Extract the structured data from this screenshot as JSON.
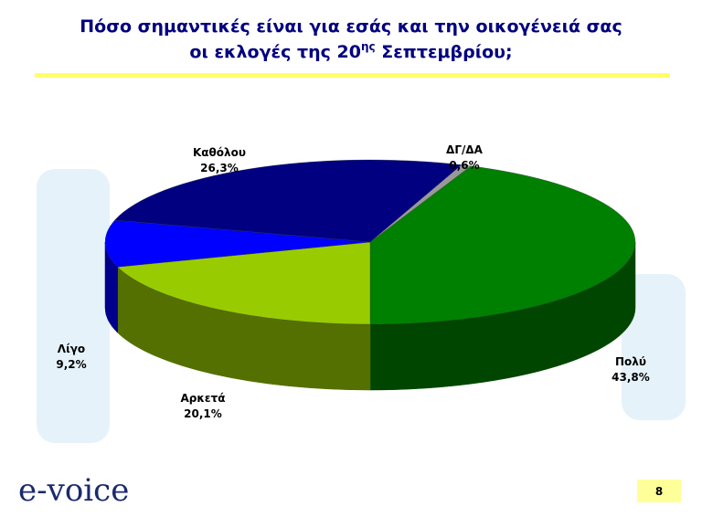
{
  "chart_data": {
    "type": "pie3d",
    "title": {
      "line1": "Πόσο σημαντικές είναι για εσάς και την οικογένειά σας",
      "line2_before": "οι εκλογές της 20",
      "superscript": "ης",
      "line2_after": " Σεπτεμβρίου;"
    },
    "categories": [
      "Πολύ",
      "Αρκετά",
      "Λίγο",
      "Καθόλου",
      "ΔΓ/ΔΑ"
    ],
    "values": [
      43.8,
      20.1,
      9.2,
      26.3,
      0.6
    ],
    "value_labels": [
      "43,8%",
      "20,1%",
      "9,2%",
      "26,3%",
      "0,6%"
    ],
    "colors": [
      "#008000",
      "#99cc00",
      "#0000ff",
      "#000080",
      "#999999"
    ]
  },
  "footer": {
    "logo": "e-voice",
    "page": "8"
  }
}
